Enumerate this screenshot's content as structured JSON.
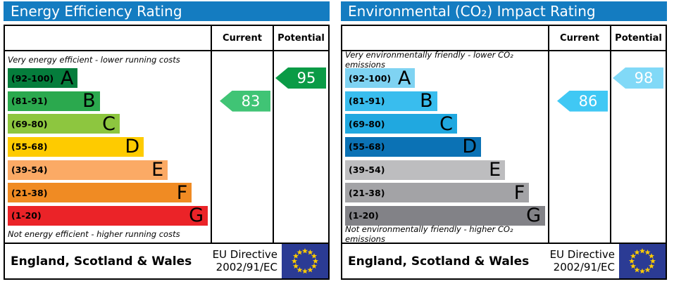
{
  "palette": {
    "header_bg": "#147cc1",
    "border": "#000000",
    "eu_flag_bg": "#2b3b94",
    "eu_star": "#ffcc00"
  },
  "charts": [
    {
      "title": "Energy Efficiency Rating",
      "columns": {
        "current": "Current",
        "potential": "Potential"
      },
      "top_note": "Very energy efficient - lower running costs",
      "bottom_note": "Not energy efficient - higher running costs",
      "bands": [
        {
          "range": "(92-100)",
          "letter": "A",
          "color": "#057d3c",
          "width_pct": 35
        },
        {
          "range": "(81-91)",
          "letter": "B",
          "color": "#2ba94e",
          "width_pct": 46
        },
        {
          "range": "(69-80)",
          "letter": "C",
          "color": "#8dc63f",
          "width_pct": 56
        },
        {
          "range": "(55-68)",
          "letter": "D",
          "color": "#fecb00",
          "width_pct": 68
        },
        {
          "range": "(39-54)",
          "letter": "E",
          "color": "#fbaa65",
          "width_pct": 80
        },
        {
          "range": "(21-38)",
          "letter": "F",
          "color": "#f08b23",
          "width_pct": 92
        },
        {
          "range": "(1-20)",
          "letter": "G",
          "color": "#eb2328",
          "width_pct": 100
        }
      ],
      "current": {
        "value": 83,
        "band_index": 1,
        "color": "#40c475"
      },
      "potential": {
        "value": 95,
        "band_index": 0,
        "color": "#0a9b46"
      },
      "footer": {
        "region": "England, Scotland & Wales",
        "directive_line1": "EU Directive",
        "directive_line2": "2002/91/EC"
      }
    },
    {
      "title": "Environmental (CO₂) Impact Rating",
      "columns": {
        "current": "Current",
        "potential": "Potential"
      },
      "top_note": "Very environmentally friendly - lower CO₂ emissions",
      "bottom_note": "Not environmentally friendly - higher CO₂ emissions",
      "bands": [
        {
          "range": "(92-100)",
          "letter": "A",
          "color": "#7fd3f2",
          "width_pct": 35
        },
        {
          "range": "(81-91)",
          "letter": "B",
          "color": "#39bdee",
          "width_pct": 46
        },
        {
          "range": "(69-80)",
          "letter": "C",
          "color": "#20a8e0",
          "width_pct": 56
        },
        {
          "range": "(55-68)",
          "letter": "D",
          "color": "#0b72b5",
          "width_pct": 68
        },
        {
          "range": "(39-54)",
          "letter": "E",
          "color": "#bdbdbf",
          "width_pct": 80
        },
        {
          "range": "(21-38)",
          "letter": "F",
          "color": "#a3a3a6",
          "width_pct": 92
        },
        {
          "range": "(1-20)",
          "letter": "G",
          "color": "#828287",
          "width_pct": 100
        }
      ],
      "current": {
        "value": 86,
        "band_index": 1,
        "color": "#40c8f4"
      },
      "potential": {
        "value": 98,
        "band_index": 0,
        "color": "#81d9f7"
      },
      "footer": {
        "region": "England, Scotland & Wales",
        "directive_line1": "EU Directive",
        "directive_line2": "2002/91/EC"
      }
    }
  ],
  "chart_data": [
    {
      "type": "bar",
      "title": "Energy Efficiency Rating",
      "categories": [
        "A (92-100)",
        "B (81-91)",
        "C (69-80)",
        "D (55-68)",
        "E (39-54)",
        "F (21-38)",
        "G (1-20)"
      ],
      "current_rating": 83,
      "current_band": "B",
      "potential_rating": 95,
      "potential_band": "A",
      "top_note": "Very energy efficient - lower running costs",
      "bottom_note": "Not energy efficient - higher running costs",
      "footer": "England, Scotland & Wales - EU Directive 2002/91/EC"
    },
    {
      "type": "bar",
      "title": "Environmental (CO₂) Impact Rating",
      "categories": [
        "A (92-100)",
        "B (81-91)",
        "C (69-80)",
        "D (55-68)",
        "E (39-54)",
        "F (21-38)",
        "G (1-20)"
      ],
      "current_rating": 86,
      "current_band": "B",
      "potential_rating": 98,
      "potential_band": "A",
      "top_note": "Very environmentally friendly - lower CO₂ emissions",
      "bottom_note": "Not environmentally friendly - higher CO₂ emissions",
      "footer": "England, Scotland & Wales - EU Directive 2002/91/EC"
    }
  ]
}
